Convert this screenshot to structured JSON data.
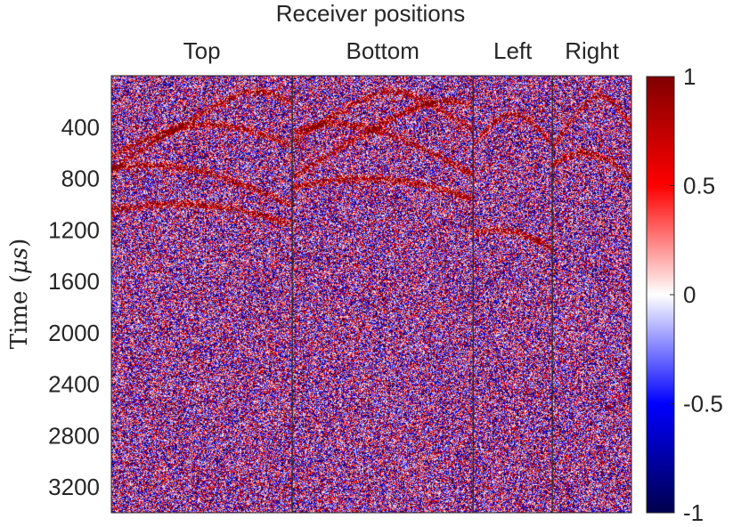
{
  "chart_data": {
    "type": "heatmap",
    "title": "Receiver positions",
    "section_labels": [
      "Top",
      "Bottom",
      "Left",
      "Right"
    ],
    "section_receiver_fraction": [
      0.3478,
      0.3478,
      0.1522,
      0.1522
    ],
    "ylabel_main": "Time (",
    "ylabel_unit": "μs",
    "ylabel_end": ")",
    "yticks": [
      "400",
      "800",
      "1200",
      "1600",
      "2000",
      "2400",
      "2800",
      "3200"
    ],
    "ytick_values": [
      400,
      800,
      1200,
      1600,
      2000,
      2400,
      2800,
      3200
    ],
    "ylim": [
      0,
      3400
    ],
    "colorbar_ticks": [
      "1",
      "0.5",
      "0",
      "-0.5",
      "-1"
    ],
    "colorbar_values": [
      1,
      0.5,
      0,
      -0.5,
      -1
    ],
    "clim": [
      -1,
      1
    ],
    "colormap": [
      "#00004d",
      "#0000ff",
      "#ffffff",
      "#ff0000",
      "#800000"
    ],
    "y_direction": "reverse",
    "grid": false,
    "legend": "colorbar-right",
    "reflection_events": [
      {
        "section": 0,
        "apex_x": 0.55,
        "apex_t": 380
      },
      {
        "section": 0,
        "apex_x": 0.8,
        "apex_t": 120
      },
      {
        "section": 0,
        "apex_x": 0.2,
        "apex_t": 700
      },
      {
        "section": 0,
        "apex_x": 0.35,
        "apex_t": 1000
      },
      {
        "section": 1,
        "apex_x": 0.25,
        "apex_t": 380
      },
      {
        "section": 1,
        "apex_x": 0.55,
        "apex_t": 120
      },
      {
        "section": 1,
        "apex_x": 0.85,
        "apex_t": 200
      },
      {
        "section": 1,
        "apex_x": 0.4,
        "apex_t": 800
      },
      {
        "section": 2,
        "apex_x": 0.5,
        "apex_t": 300
      },
      {
        "section": 2,
        "apex_x": 0.3,
        "apex_t": 1200
      },
      {
        "section": 3,
        "apex_x": 0.6,
        "apex_t": 150
      },
      {
        "section": 3,
        "apex_x": 0.4,
        "apex_t": 600
      }
    ]
  }
}
